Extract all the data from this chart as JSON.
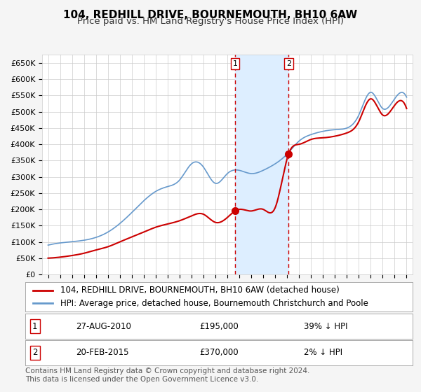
{
  "title": "104, REDHILL DRIVE, BOURNEMOUTH, BH10 6AW",
  "subtitle": "Price paid vs. HM Land Registry's House Price Index (HPI)",
  "ylabel_ticks": [
    "£0",
    "£50K",
    "£100K",
    "£150K",
    "£200K",
    "£250K",
    "£300K",
    "£350K",
    "£400K",
    "£450K",
    "£500K",
    "£550K",
    "£600K",
    "£650K"
  ],
  "ytick_vals": [
    0,
    50000,
    100000,
    150000,
    200000,
    250000,
    300000,
    350000,
    400000,
    450000,
    500000,
    550000,
    600000,
    650000
  ],
  "xlim_start": 1994.5,
  "xlim_end": 2025.5,
  "ylim_min": 0,
  "ylim_max": 675000,
  "sale1_date": 2010.65,
  "sale1_price": 195000,
  "sale1_label": "1",
  "sale2_date": 2015.12,
  "sale2_price": 370000,
  "sale2_label": "2",
  "shaded_start": 2010.65,
  "shaded_end": 2015.12,
  "red_line_color": "#cc0000",
  "blue_line_color": "#6699cc",
  "shaded_color": "#ddeeff",
  "grid_color": "#cccccc",
  "bg_color": "#f5f5f5",
  "plot_bg_color": "#ffffff",
  "legend_line1": "104, REDHILL DRIVE, BOURNEMOUTH, BH10 6AW (detached house)",
  "legend_line2": "HPI: Average price, detached house, Bournemouth Christchurch and Poole",
  "table_row1_label": "1",
  "table_row1_date": "27-AUG-2010",
  "table_row1_price": "£195,000",
  "table_row1_hpi": "39% ↓ HPI",
  "table_row2_label": "2",
  "table_row2_date": "20-FEB-2015",
  "table_row2_price": "£370,000",
  "table_row2_hpi": "2% ↓ HPI",
  "footer": "Contains HM Land Registry data © Crown copyright and database right 2024.\nThis data is licensed under the Open Government Licence v3.0.",
  "title_fontsize": 11,
  "subtitle_fontsize": 9.5,
  "tick_fontsize": 8,
  "legend_fontsize": 8.5,
  "table_fontsize": 8.5,
  "footer_fontsize": 7.5
}
